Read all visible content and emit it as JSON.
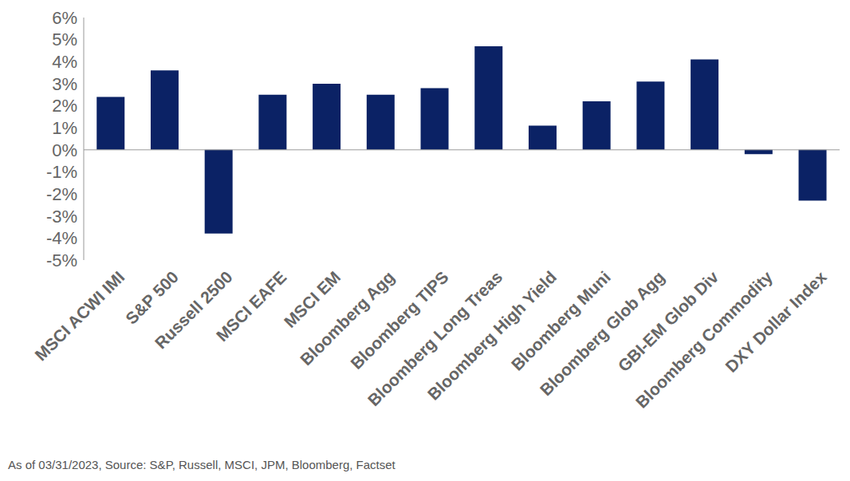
{
  "chart_data": {
    "type": "bar",
    "footnote": "As of 03/31/2023, Source: S&P, Russell, MSCI, JPM, Bloomberg, Factset",
    "categories": [
      "MSCI ACWI IMI",
      "S&P 500",
      "Russell 2500",
      "MSCI EAFE",
      "MSCI EM",
      "Bloomberg Agg",
      "Bloomberg TIPS",
      "Bloomberg Long Treas",
      "Bloomberg High Yield",
      "Bloomberg Muni",
      "Bloomberg Glob Agg",
      "GBI-EM Glob Div",
      "Bloomberg Commodity",
      "DXY Dollar Index"
    ],
    "values": [
      2.4,
      3.6,
      -3.8,
      2.5,
      3.0,
      2.5,
      2.8,
      4.7,
      1.1,
      2.2,
      3.1,
      4.1,
      -0.2,
      -2.3
    ],
    "color": "#0b2265",
    "ylim": [
      -5,
      6
    ],
    "yticks": [
      {
        "value": -5,
        "label": "-5%"
      },
      {
        "value": -4,
        "label": "-4%"
      },
      {
        "value": -3,
        "label": "-3%"
      },
      {
        "value": -2,
        "label": "-2%"
      },
      {
        "value": -1,
        "label": "-1%"
      },
      {
        "value": 0,
        "label": "0%"
      },
      {
        "value": 1,
        "label": "1%"
      },
      {
        "value": 2,
        "label": "2%"
      },
      {
        "value": 3,
        "label": "3%"
      },
      {
        "value": 4,
        "label": "4%"
      },
      {
        "value": 5,
        "label": "5%"
      },
      {
        "value": 6,
        "label": "6%"
      }
    ],
    "grid": false
  }
}
